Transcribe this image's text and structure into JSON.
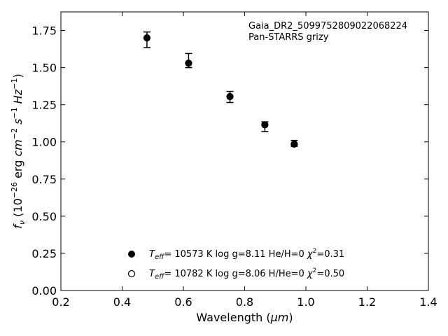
{
  "chart_data": {
    "type": "scatter",
    "xlabel_main": "Wavelength (",
    "xlabel_unit": "μm",
    "xlabel_close": ")",
    "ylabel": {
      "f": "f",
      "nu": "ν",
      "open": " (10",
      "exp1": "−26",
      "erg": " erg ",
      "cm": "cm",
      "exp2": "−2",
      "s": " s",
      "exp3": "−1",
      "hz": " Hz",
      "exp4": "−1",
      "close": ")"
    },
    "xlim": [
      0.2,
      1.4
    ],
    "ylim": [
      0.0,
      1.875
    ],
    "xticks": [
      0.2,
      0.4,
      0.6,
      0.8,
      1.0,
      1.2,
      1.4
    ],
    "xtick_labels": [
      "0.2",
      "0.4",
      "0.6",
      "0.8",
      "1.0",
      "1.2",
      "1.4"
    ],
    "yticks": [
      0.0,
      0.25,
      0.5,
      0.75,
      1.0,
      1.25,
      1.5,
      1.75
    ],
    "ytick_labels": [
      "0.00",
      "0.25",
      "0.50",
      "0.75",
      "1.00",
      "1.25",
      "1.50",
      "1.75"
    ],
    "annotation": {
      "line1": "Gaia_DR2_5099752809022068224",
      "line2": "Pan-STARRS grizy"
    },
    "series": [
      {
        "marker": "filled",
        "points": [
          {
            "x": 0.481,
            "y": 1.7,
            "err_lo": 0.065,
            "err_hi": 0.04
          },
          {
            "x": 0.617,
            "y": 1.53,
            "err_lo": 0.03,
            "err_hi": 0.065
          },
          {
            "x": 0.752,
            "y": 1.305,
            "err_lo": 0.04,
            "err_hi": 0.035
          },
          {
            "x": 0.866,
            "y": 1.115,
            "err_lo": 0.045,
            "err_hi": 0.02
          },
          {
            "x": 0.962,
            "y": 0.985,
            "err_lo": 0.015,
            "err_hi": 0.025
          }
        ]
      }
    ],
    "legend": [
      {
        "marker": "filled",
        "T": "T",
        "sub": "eff",
        "text": "= 10573 K  log g=8.11  He/H=0  ",
        "chi": "χ",
        "sq": "2",
        "chi_val": "=0.31"
      },
      {
        "marker": "open",
        "T": "T",
        "sub": "eff",
        "text": "= 10782 K  log g=8.06  H/He=0  ",
        "chi": "χ",
        "sq": "2",
        "chi_val": "=0.50"
      }
    ],
    "legend_placement": "lower-center",
    "grid": false,
    "colors": {
      "marker": "#000000",
      "axes": "#000000",
      "background": "#ffffff"
    }
  }
}
